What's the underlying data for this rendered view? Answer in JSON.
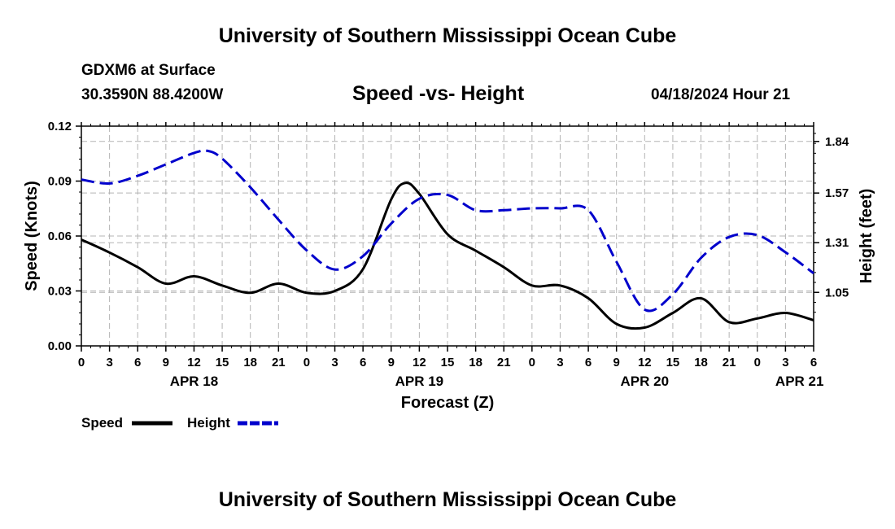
{
  "header": {
    "title": "University of Southern Mississippi Ocean Cube",
    "station": "GDXM6 at Surface",
    "coords": "30.3590N  88.4200W",
    "subtitle": "Speed -vs- Height",
    "datetime": "04/18/2024 Hour 21"
  },
  "footer": {
    "title": "University of Southern Mississippi Ocean Cube"
  },
  "chart_data": {
    "type": "line",
    "title": "Speed -vs- Height",
    "xlabel": "Forecast (Z)",
    "ylabel": "Speed (Knots)",
    "y2label": "Height (feet)",
    "xlim": [
      0,
      78
    ],
    "ylim": [
      0,
      0.12
    ],
    "y2lim": [
      0.77,
      1.92
    ],
    "x_ticks": [
      0,
      3,
      6,
      9,
      12,
      15,
      18,
      21,
      24,
      27,
      30,
      33,
      36,
      39,
      42,
      45,
      48,
      51,
      54,
      57,
      60,
      63,
      66,
      69,
      72,
      75,
      78
    ],
    "x_tick_labels": [
      "0",
      "3",
      "6",
      "9",
      "12",
      "15",
      "18",
      "21",
      "0",
      "3",
      "6",
      "9",
      "12",
      "15",
      "18",
      "21",
      "0",
      "3",
      "6",
      "9",
      "12",
      "15",
      "18",
      "21",
      "0",
      "3",
      "6"
    ],
    "date_labels": [
      {
        "hour": 12,
        "label": "APR 18"
      },
      {
        "hour": 36,
        "label": "APR 19"
      },
      {
        "hour": 60,
        "label": "APR 20"
      },
      {
        "hour": 76.5,
        "label": "APR 21"
      }
    ],
    "y_ticks": [
      0,
      0.03,
      0.06,
      0.09,
      0.12
    ],
    "y_tick_labels": [
      "0.00",
      "0.03",
      "0.06",
      "0.09",
      "0.12"
    ],
    "y2_ticks": [
      1.05,
      1.31,
      1.57,
      1.84
    ],
    "y2_tick_labels": [
      "1.05",
      "1.31",
      "1.57",
      "1.84"
    ],
    "grid": true,
    "legend_position": "bottom-left",
    "series": [
      {
        "name": "Speed",
        "axis": "left",
        "color": "#000000",
        "dash": "solid",
        "x": [
          0,
          3,
          6,
          9,
          12,
          15,
          18,
          21,
          24,
          27,
          30,
          33,
          34.5,
          36,
          39,
          42,
          45,
          48,
          51,
          54,
          57,
          60,
          63,
          66,
          69,
          72,
          75,
          78
        ],
        "values": [
          0.058,
          0.051,
          0.043,
          0.034,
          0.038,
          0.033,
          0.029,
          0.034,
          0.029,
          0.03,
          0.042,
          0.08,
          0.089,
          0.083,
          0.061,
          0.052,
          0.043,
          0.033,
          0.033,
          0.026,
          0.012,
          0.01,
          0.018,
          0.026,
          0.013,
          0.015,
          0.018,
          0.014
        ]
      },
      {
        "name": "Height",
        "axis": "right",
        "color": "#0000cc",
        "dash": "dashed",
        "x": [
          0,
          3,
          6,
          9,
          12,
          13.5,
          15,
          18,
          21,
          24,
          27,
          30,
          33,
          36,
          39,
          42,
          45,
          48,
          51,
          54,
          57,
          60,
          63,
          66,
          69,
          72,
          75,
          78
        ],
        "values": [
          1.64,
          1.62,
          1.66,
          1.72,
          1.78,
          1.79,
          1.75,
          1.6,
          1.43,
          1.27,
          1.17,
          1.24,
          1.41,
          1.54,
          1.56,
          1.48,
          1.48,
          1.49,
          1.49,
          1.48,
          1.21,
          0.96,
          1.04,
          1.23,
          1.34,
          1.35,
          1.26,
          1.15
        ]
      }
    ]
  }
}
